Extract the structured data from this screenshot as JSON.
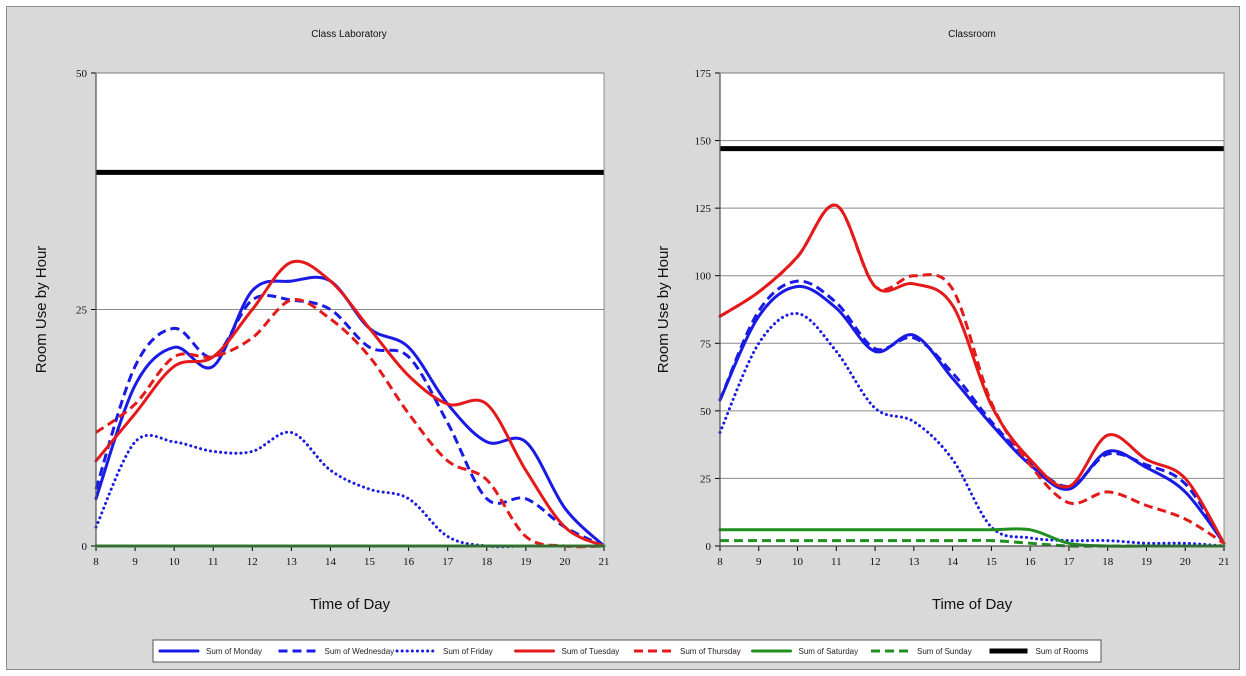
{
  "colors": {
    "blue": "#1a1ae6",
    "red": "#e41a1a",
    "green": "#1f8f1f",
    "black": "#000000",
    "frame_bg": "#d9d9d9",
    "plot_bg": "#ffffff",
    "grid": "#8a8a8a"
  },
  "chart_data": [
    {
      "type": "line",
      "title": "Class Laboratory",
      "xlabel": "Time of Day",
      "ylabel": "Room Use by Hour",
      "x": [
        8,
        9,
        10,
        11,
        12,
        13,
        14,
        15,
        16,
        17,
        18,
        19,
        20,
        21
      ],
      "xlim": [
        8,
        21
      ],
      "ylim": [
        0,
        50
      ],
      "yticks": [
        0,
        25,
        50
      ],
      "grid": true,
      "legend": "bottom",
      "series": [
        {
          "name": "Sum of Monday",
          "color": "blue",
          "style": "solid",
          "values": [
            5,
            17,
            21,
            19,
            27,
            28,
            28,
            23,
            21,
            15,
            11,
            11,
            4,
            0
          ]
        },
        {
          "name": "Sum of Wednesday",
          "color": "blue",
          "style": "dashed",
          "values": [
            6,
            19,
            23,
            20,
            26,
            26,
            25,
            21,
            20,
            13,
            5,
            5,
            2,
            0
          ]
        },
        {
          "name": "Sum of Friday",
          "color": "blue",
          "style": "dotted",
          "values": [
            2,
            11,
            11,
            10,
            10,
            12,
            8,
            6,
            5,
            1,
            0,
            0,
            0,
            0
          ]
        },
        {
          "name": "Sum of Tuesday",
          "color": "red",
          "style": "solid",
          "values": [
            9,
            14,
            19,
            20,
            25,
            30,
            28,
            23,
            18,
            15,
            15,
            8,
            2,
            0
          ]
        },
        {
          "name": "Sum of Thursday",
          "color": "red",
          "style": "dashed",
          "values": [
            12,
            15,
            20,
            20,
            22,
            26,
            24,
            20,
            14,
            9,
            7,
            1,
            0,
            0
          ]
        },
        {
          "name": "Sum of Saturday",
          "color": "green",
          "style": "solid",
          "values": [
            0,
            0,
            0,
            0,
            0,
            0,
            0,
            0,
            0,
            0,
            0,
            0,
            0,
            0
          ]
        },
        {
          "name": "Sum of Sunday",
          "color": "green",
          "style": "dashed",
          "values": [
            0,
            0,
            0,
            0,
            0,
            0,
            0,
            0,
            0,
            0,
            0,
            0,
            0,
            0
          ]
        },
        {
          "name": "Sum of Rooms",
          "color": "black",
          "style": "thick",
          "values": [
            39.5,
            39.5,
            39.5,
            39.5,
            39.5,
            39.5,
            39.5,
            39.5,
            39.5,
            39.5,
            39.5,
            39.5,
            39.5,
            39.5
          ]
        }
      ]
    },
    {
      "type": "line",
      "title": "Classroom",
      "xlabel": "Time of Day",
      "ylabel": "Room Use by Hour",
      "x": [
        8,
        9,
        10,
        11,
        12,
        13,
        14,
        15,
        16,
        17,
        18,
        19,
        20,
        21
      ],
      "xlim": [
        8,
        21
      ],
      "ylim": [
        0,
        175
      ],
      "yticks": [
        0,
        25,
        50,
        75,
        100,
        125,
        150,
        175
      ],
      "grid": true,
      "legend": "bottom",
      "series": [
        {
          "name": "Sum of Monday",
          "color": "blue",
          "style": "solid",
          "values": [
            54,
            85,
            96,
            88,
            72,
            78,
            62,
            45,
            30,
            21,
            35,
            29,
            20,
            1
          ]
        },
        {
          "name": "Sum of Wednesday",
          "color": "blue",
          "style": "dashed",
          "values": [
            54,
            87,
            98,
            90,
            73,
            77,
            64,
            46,
            31,
            22,
            34,
            30,
            23,
            1
          ]
        },
        {
          "name": "Sum of Friday",
          "color": "blue",
          "style": "dotted",
          "values": [
            42,
            75,
            86,
            72,
            51,
            46,
            32,
            7,
            3,
            2,
            2,
            1,
            1,
            0
          ]
        },
        {
          "name": "Sum of Tuesday",
          "color": "red",
          "style": "solid",
          "values": [
            85,
            94,
            107,
            126,
            96,
            97,
            89,
            52,
            32,
            22,
            41,
            32,
            25,
            1
          ]
        },
        {
          "name": "Sum of Thursday",
          "color": "red",
          "style": "dashed",
          "values": [
            85,
            94,
            107,
            126,
            96,
            100,
            95,
            53,
            30,
            16,
            20,
            15,
            10,
            1
          ]
        },
        {
          "name": "Sum of Saturday",
          "color": "green",
          "style": "solid",
          "values": [
            6,
            6,
            6,
            6,
            6,
            6,
            6,
            6,
            6,
            1,
            0,
            0,
            0,
            0
          ]
        },
        {
          "name": "Sum of Sunday",
          "color": "green",
          "style": "dashed",
          "values": [
            2,
            2,
            2,
            2,
            2,
            2,
            2,
            2,
            1,
            0,
            0,
            0,
            0,
            0
          ]
        },
        {
          "name": "Sum of Rooms",
          "color": "black",
          "style": "thick",
          "values": [
            147,
            147,
            147,
            147,
            147,
            147,
            147,
            147,
            147,
            147,
            147,
            147,
            147,
            147
          ]
        }
      ]
    }
  ],
  "legend": [
    {
      "label": "Sum of Monday",
      "color": "blue",
      "style": "solid"
    },
    {
      "label": "Sum of Wednesday",
      "color": "blue",
      "style": "dashed"
    },
    {
      "label": "Sum of Friday",
      "color": "blue",
      "style": "dotted"
    },
    {
      "label": "Sum of Tuesday",
      "color": "red",
      "style": "solid"
    },
    {
      "label": "Sum of Thursday",
      "color": "red",
      "style": "dashed"
    },
    {
      "label": "Sum of Saturday",
      "color": "green",
      "style": "solid"
    },
    {
      "label": "Sum of Sunday",
      "color": "green",
      "style": "dashed"
    },
    {
      "label": "Sum of Rooms",
      "color": "black",
      "style": "thick"
    }
  ]
}
